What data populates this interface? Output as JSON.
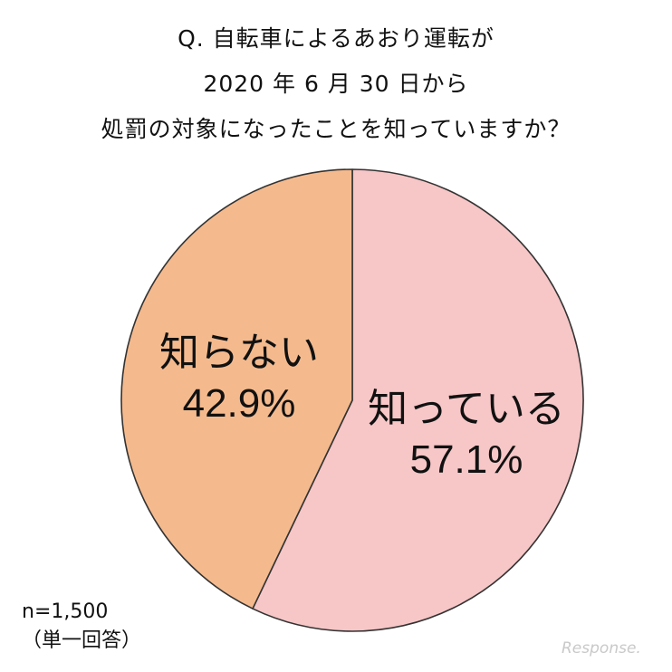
{
  "title": {
    "line1": "Q. 自転車によるあおり運転が",
    "line2": "2020 年 6 月 30 日から",
    "line3": "処罰の対象になったことを知っていますか？"
  },
  "chart_data": {
    "type": "pie",
    "start_angle_deg": 0,
    "direction": "clockwise",
    "slices": [
      {
        "label": "知っている",
        "value": 57.1,
        "value_label": "57.1%",
        "color": "#F7C6C7"
      },
      {
        "label": "知らない",
        "value": 42.9,
        "value_label": "42.9%",
        "color": "#F4BA8E"
      }
    ],
    "edge_color": "#333333"
  },
  "note": {
    "sample": "n=1,500",
    "answer_type": "（単一回答）"
  },
  "watermark": {
    "text": "Response."
  }
}
